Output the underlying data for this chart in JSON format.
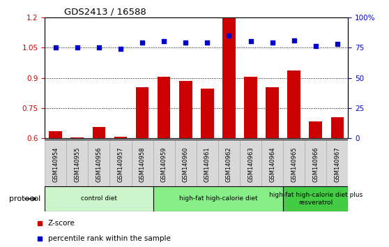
{
  "title": "GDS2413 / 16588",
  "samples": [
    "GSM140954",
    "GSM140955",
    "GSM140956",
    "GSM140957",
    "GSM140958",
    "GSM140959",
    "GSM140960",
    "GSM140961",
    "GSM140962",
    "GSM140963",
    "GSM140964",
    "GSM140965",
    "GSM140966",
    "GSM140967"
  ],
  "zscore": [
    0.635,
    0.605,
    0.655,
    0.607,
    0.855,
    0.905,
    0.885,
    0.845,
    1.195,
    0.905,
    0.855,
    0.935,
    0.685,
    0.705
  ],
  "percentile": [
    75,
    75,
    75,
    74,
    79,
    80,
    79,
    79,
    85,
    80,
    79,
    81,
    76,
    78
  ],
  "ylim_left": [
    0.6,
    1.2
  ],
  "ylim_right": [
    0,
    100
  ],
  "yticks_left": [
    0.6,
    0.75,
    0.9,
    1.05,
    1.2
  ],
  "yticks_right": [
    0,
    25,
    50,
    75,
    100
  ],
  "ytick_labels_left": [
    "0.6",
    "0.75",
    "0.9",
    "1.05",
    "1.2"
  ],
  "ytick_labels_right": [
    "0",
    "25",
    "50",
    "75",
    "100%"
  ],
  "bar_color": "#cc0000",
  "scatter_color": "#0000cc",
  "groups": [
    {
      "label": "control diet",
      "start": 0,
      "end": 4,
      "color": "#ccf5cc"
    },
    {
      "label": "high-fat high-calorie diet",
      "start": 5,
      "end": 10,
      "color": "#88ee88"
    },
    {
      "label": "high-fat high-calorie diet plus\nresveratrol",
      "start": 11,
      "end": 13,
      "color": "#44cc44"
    }
  ],
  "protocol_label": "protocol",
  "legend_items": [
    {
      "label": "Z-score",
      "color": "#cc0000"
    },
    {
      "label": "percentile rank within the sample",
      "color": "#0000cc"
    }
  ],
  "left_axis_color": "#cc0000",
  "right_axis_color": "#0000cc",
  "bg_color": "#ffffff",
  "tick_bg": "#d8d8d8"
}
